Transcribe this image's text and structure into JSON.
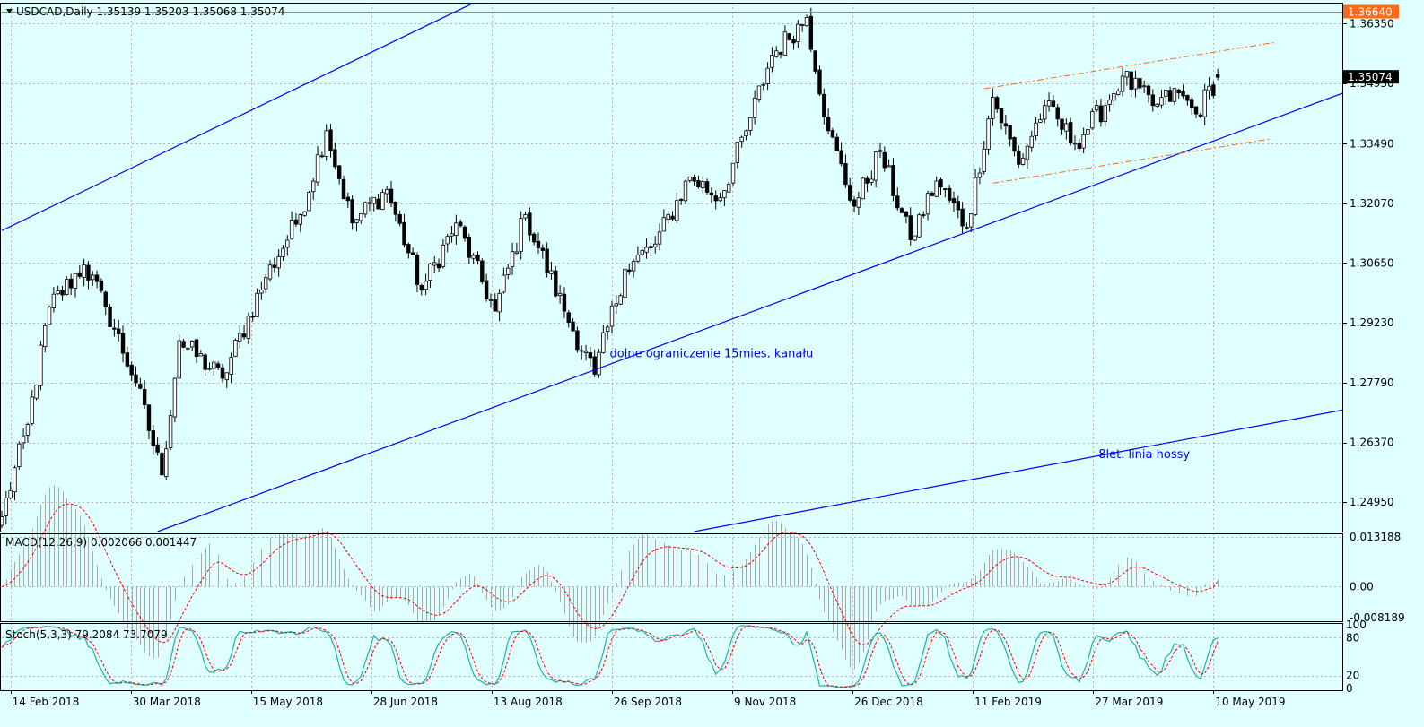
{
  "colors": {
    "background": "#e0ffff",
    "grid": "#b4b4b4",
    "frame": "#000000",
    "candle": "#000000",
    "trend_line": "#0000ff",
    "resistance_line": "#ff6a1a",
    "dashed_channel": "#ff6a1a",
    "annotation": "#0000ff",
    "macd_hist": "#a9a9a9",
    "macd_signal": "#ff0000",
    "stoch_main": "#20b2aa",
    "stoch_signal": "#ff0000",
    "price_label_bg": "#000000",
    "level_label_bg": "#ff6a1a"
  },
  "chart_data": {
    "type": "candlestick",
    "main": {
      "header": "USDCAD,Daily  1.35139 1.35203 1.35068 1.35074",
      "symbol": "USDCAD,Daily",
      "ohlc": {
        "open": 1.35139,
        "high": 1.35203,
        "low": 1.35068,
        "close": 1.35074
      },
      "y_ticks": [
        "1.36350",
        "1.34930",
        "1.33490",
        "1.32070",
        "1.30650",
        "1.29230",
        "1.27790",
        "1.26370",
        "1.24950"
      ],
      "y_range": [
        1.2425,
        1.3685
      ],
      "x_ticks": [
        "14 Feb 2018",
        "30 Mar 2018",
        "15 May 2018",
        "28 Jun 2018",
        "13 Aug 2018",
        "26 Sep 2018",
        "9 Nov 2018",
        "26 Dec 2018",
        "11 Feb 2019",
        "27 Mar 2019",
        "10 May 2019"
      ],
      "x_range": [
        0,
        310
      ],
      "last_candle_index": 281,
      "resistance_level": {
        "value": 1.3664,
        "label": "1.36640"
      },
      "current_price": {
        "value": 1.35074,
        "label": "1.35074"
      },
      "price_anchors": [
        {
          "i": 0,
          "close": 1.246
        },
        {
          "i": 6,
          "close": 1.268
        },
        {
          "i": 11,
          "close": 1.296
        },
        {
          "i": 19,
          "close": 1.306
        },
        {
          "i": 24,
          "close": 1.296
        },
        {
          "i": 31,
          "close": 1.278
        },
        {
          "i": 37,
          "close": 1.256
        },
        {
          "i": 41,
          "close": 1.288
        },
        {
          "i": 51,
          "close": 1.279
        },
        {
          "i": 61,
          "close": 1.303
        },
        {
          "i": 69,
          "close": 1.318
        },
        {
          "i": 75,
          "close": 1.338
        },
        {
          "i": 81,
          "close": 1.316
        },
        {
          "i": 89,
          "close": 1.324
        },
        {
          "i": 97,
          "close": 1.3
        },
        {
          "i": 105,
          "close": 1.316
        },
        {
          "i": 114,
          "close": 1.295
        },
        {
          "i": 121,
          "close": 1.318
        },
        {
          "i": 130,
          "close": 1.295
        },
        {
          "i": 137,
          "close": 1.28
        },
        {
          "i": 144,
          "close": 1.305
        },
        {
          "i": 151,
          "close": 1.311
        },
        {
          "i": 159,
          "close": 1.327
        },
        {
          "i": 166,
          "close": 1.322
        },
        {
          "i": 172,
          "close": 1.338
        },
        {
          "i": 178,
          "close": 1.356
        },
        {
          "i": 186,
          "close": 1.365
        },
        {
          "i": 191,
          "close": 1.338
        },
        {
          "i": 197,
          "close": 1.32
        },
        {
          "i": 203,
          "close": 1.333
        },
        {
          "i": 210,
          "close": 1.312
        },
        {
          "i": 216,
          "close": 1.326
        },
        {
          "i": 223,
          "close": 1.315
        },
        {
          "i": 229,
          "close": 1.346
        },
        {
          "i": 235,
          "close": 1.33
        },
        {
          "i": 241,
          "close": 1.344
        },
        {
          "i": 248,
          "close": 1.335
        },
        {
          "i": 255,
          "close": 1.344
        },
        {
          "i": 259,
          "close": 1.351
        },
        {
          "i": 266,
          "close": 1.344
        },
        {
          "i": 272,
          "close": 1.347
        },
        {
          "i": 276,
          "close": 1.342
        },
        {
          "i": 281,
          "close": 1.35074
        }
      ],
      "trend_lines": [
        {
          "name": "upper-channel-line",
          "from": {
            "i": 0,
            "price": 1.3142
          },
          "to": {
            "i": 161,
            "price": 1.3943
          }
        },
        {
          "name": "lower-channel-line",
          "from": {
            "i": 36,
            "price": 1.2425
          },
          "to": {
            "i": 310,
            "price": 1.347
          }
        },
        {
          "name": "long-term-trend-line",
          "from": {
            "i": 160,
            "price": 1.2425
          },
          "to": {
            "i": 310,
            "price": 1.2715
          }
        }
      ],
      "dashed_lines": [
        {
          "name": "dashed-upper-line",
          "from": {
            "i": 227,
            "price": 1.348
          },
          "to": {
            "i": 294,
            "price": 1.359
          }
        },
        {
          "name": "dashed-lower-line",
          "from": {
            "i": 229,
            "price": 1.3255
          },
          "to": {
            "i": 293,
            "price": 1.336
          }
        }
      ],
      "annotations": [
        {
          "text": "dolne ograniczenie 15mies. kanału",
          "i": 164,
          "price": 1.284
        },
        {
          "text": "8let. linia hossy",
          "i": 264,
          "price": 1.26
        }
      ]
    },
    "macd": {
      "label": "MACD(12,26,9) 0.002066 0.001447",
      "params": "12,26,9",
      "main_value": 0.002066,
      "signal_value": 0.001447,
      "y_ticks": [
        "0.013188",
        "0.00",
        "-0.008189"
      ],
      "y_range": [
        -0.0092,
        0.0142
      ]
    },
    "stoch": {
      "label": "Stoch(5,3,3) 79.2084 73.7079",
      "params": "5,3,3",
      "main_value": 79.2084,
      "signal_value": 73.7079,
      "y_ticks": [
        "100",
        "80",
        "20",
        "0"
      ],
      "y_range": [
        -3,
        103
      ]
    }
  }
}
